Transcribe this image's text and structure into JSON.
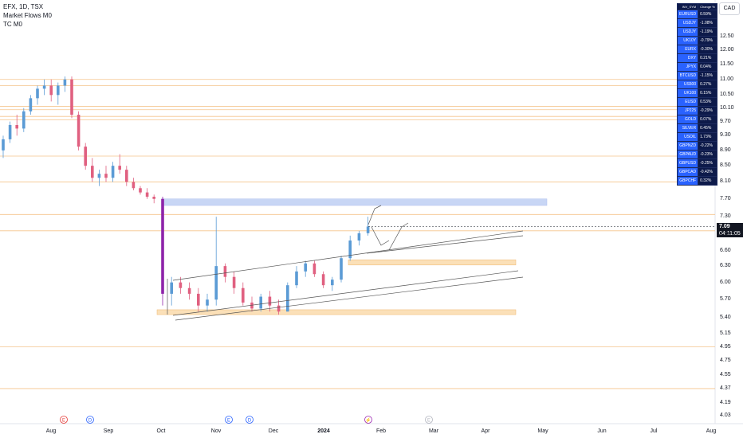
{
  "legend": {
    "symbol_line": "EFX, 1D, TSX",
    "indicator1": "Market Flows M0",
    "indicator2": "TC M0"
  },
  "currency": "CAD",
  "price_axis": [
    "12.50",
    "12.00",
    "11.50",
    "11.00",
    "10.50",
    "10.10",
    "9.70",
    "9.30",
    "8.90",
    "8.50",
    "8.10",
    "7.70",
    "7.30",
    "6.90",
    "6.60",
    "6.30",
    "6.00",
    "5.70",
    "5.40",
    "5.15",
    "4.95",
    "4.75",
    "4.55",
    "4.37",
    "4.19",
    "4.03"
  ],
  "time_axis": [
    "Aug",
    "Sep",
    "Oct",
    "Nov",
    "Dec",
    "2024",
    "Feb",
    "Mar",
    "Apr",
    "May",
    "Jun",
    "Jul",
    "Aug"
  ],
  "last_price": {
    "value": "7.09",
    "countdown": "04:11:05"
  },
  "watchlist": {
    "header": [
      "INV_SYM",
      "Change %"
    ],
    "rows": [
      {
        "sym": "EURUSD",
        "chg": "0.59%"
      },
      {
        "sym": "USDJY",
        "chg": "-1.08%"
      },
      {
        "sym": "USDJY",
        "chg": "-1.19%"
      },
      {
        "sym": "UK10Y",
        "chg": "-0.79%"
      },
      {
        "sym": "EURX",
        "chg": "-0.30%"
      },
      {
        "sym": "DXY",
        "chg": "0.21%"
      },
      {
        "sym": "JPYX",
        "chg": "0.04%"
      },
      {
        "sym": "BTCUSD",
        "chg": "-1.15%"
      },
      {
        "sym": "US500",
        "chg": "0.27%"
      },
      {
        "sym": "UK100",
        "chg": "0.15%"
      },
      {
        "sym": "EUSD",
        "chg": "0.53%"
      },
      {
        "sym": "JP225",
        "chg": "-0.29%"
      },
      {
        "sym": "GOLD",
        "chg": "0.07%"
      },
      {
        "sym": "SILVER",
        "chg": "0.45%"
      },
      {
        "sym": "USOIL",
        "chg": "1.73%"
      },
      {
        "sym": "GBPNZD",
        "chg": "-0.22%"
      },
      {
        "sym": "GBPAUD",
        "chg": "-0.23%"
      },
      {
        "sym": "GBPUSD",
        "chg": "-0.25%"
      },
      {
        "sym": "GBPCAD",
        "chg": "-0.42%"
      },
      {
        "sym": "GBPCHF",
        "chg": "0.32%"
      }
    ]
  },
  "event_markers": [
    "E",
    "D",
    "E",
    "D",
    "⚡",
    "E"
  ],
  "colors": {
    "up": "#5b9bd5",
    "down": "#e06080",
    "level_line": "#f5c48c",
    "zone_orange": "#fbe0b8",
    "zone_blue": "#c8d6f5",
    "impulse": "#8e24aa",
    "channel": "#555555"
  },
  "chart_data": {
    "type": "candlestick",
    "symbol": "EFX",
    "interval": "1D",
    "exchange": "TSX",
    "currency": "CAD",
    "y_scale": "log",
    "levels": [
      11.0,
      10.8,
      10.15,
      10.05,
      9.85,
      9.75,
      8.75,
      8.1,
      7.35,
      7.0,
      4.95,
      4.37
    ],
    "candles": [
      {
        "o": 8.9,
        "h": 9.3,
        "l": 8.7,
        "c": 9.2
      },
      {
        "o": 9.2,
        "h": 9.7,
        "l": 9.1,
        "c": 9.6
      },
      {
        "o": 9.6,
        "h": 9.9,
        "l": 9.3,
        "c": 9.5
      },
      {
        "o": 9.5,
        "h": 10.1,
        "l": 9.4,
        "c": 10.0
      },
      {
        "o": 10.0,
        "h": 10.5,
        "l": 9.9,
        "c": 10.4
      },
      {
        "o": 10.4,
        "h": 10.8,
        "l": 10.2,
        "c": 10.7
      },
      {
        "o": 10.7,
        "h": 11.0,
        "l": 10.5,
        "c": 10.8
      },
      {
        "o": 10.8,
        "h": 11.0,
        "l": 10.3,
        "c": 10.5
      },
      {
        "o": 10.5,
        "h": 10.9,
        "l": 10.2,
        "c": 10.8
      },
      {
        "o": 10.8,
        "h": 11.1,
        "l": 10.6,
        "c": 11.0
      },
      {
        "o": 11.0,
        "h": 11.1,
        "l": 9.8,
        "c": 9.9
      },
      {
        "o": 9.9,
        "h": 10.0,
        "l": 8.9,
        "c": 9.0
      },
      {
        "o": 9.0,
        "h": 9.1,
        "l": 8.4,
        "c": 8.5
      },
      {
        "o": 8.5,
        "h": 8.7,
        "l": 8.1,
        "c": 8.2
      },
      {
        "o": 8.2,
        "h": 8.4,
        "l": 8.0,
        "c": 8.3
      },
      {
        "o": 8.3,
        "h": 8.5,
        "l": 8.1,
        "c": 8.2
      },
      {
        "o": 8.2,
        "h": 8.6,
        "l": 8.1,
        "c": 8.5
      },
      {
        "o": 8.5,
        "h": 8.8,
        "l": 8.3,
        "c": 8.4
      },
      {
        "o": 8.4,
        "h": 8.5,
        "l": 8.0,
        "c": 8.1
      },
      {
        "o": 8.1,
        "h": 8.2,
        "l": 7.9,
        "c": 7.95
      },
      {
        "o": 7.95,
        "h": 8.0,
        "l": 7.8,
        "c": 7.85
      },
      {
        "o": 7.85,
        "h": 7.95,
        "l": 7.7,
        "c": 7.75
      },
      {
        "o": 7.75,
        "h": 7.8,
        "l": 7.6,
        "c": 7.7
      },
      {
        "o": 7.7,
        "h": 7.75,
        "l": 5.6,
        "c": 5.8
      },
      {
        "o": 5.8,
        "h": 6.1,
        "l": 5.6,
        "c": 6.0
      },
      {
        "o": 6.0,
        "h": 6.1,
        "l": 5.8,
        "c": 5.9
      },
      {
        "o": 5.9,
        "h": 6.0,
        "l": 5.7,
        "c": 5.8
      },
      {
        "o": 5.8,
        "h": 5.9,
        "l": 5.5,
        "c": 5.6
      },
      {
        "o": 5.6,
        "h": 5.8,
        "l": 5.5,
        "c": 5.7
      },
      {
        "o": 5.7,
        "h": 7.3,
        "l": 5.6,
        "c": 6.3
      },
      {
        "o": 6.3,
        "h": 6.35,
        "l": 6.0,
        "c": 6.1
      },
      {
        "o": 6.1,
        "h": 6.2,
        "l": 5.8,
        "c": 5.9
      },
      {
        "o": 5.9,
        "h": 6.0,
        "l": 5.6,
        "c": 5.65
      },
      {
        "o": 5.65,
        "h": 5.75,
        "l": 5.5,
        "c": 5.55
      },
      {
        "o": 5.55,
        "h": 5.8,
        "l": 5.5,
        "c": 5.75
      },
      {
        "o": 5.75,
        "h": 5.85,
        "l": 5.5,
        "c": 5.6
      },
      {
        "o": 5.6,
        "h": 5.7,
        "l": 5.45,
        "c": 5.5
      },
      {
        "o": 5.5,
        "h": 6.0,
        "l": 5.5,
        "c": 5.95
      },
      {
        "o": 5.95,
        "h": 6.3,
        "l": 5.9,
        "c": 6.2
      },
      {
        "o": 6.2,
        "h": 6.4,
        "l": 6.1,
        "c": 6.35
      },
      {
        "o": 6.35,
        "h": 6.4,
        "l": 6.1,
        "c": 6.15
      },
      {
        "o": 6.15,
        "h": 6.2,
        "l": 5.9,
        "c": 5.95
      },
      {
        "o": 5.95,
        "h": 6.1,
        "l": 5.85,
        "c": 6.05
      },
      {
        "o": 6.05,
        "h": 6.5,
        "l": 6.0,
        "c": 6.45
      },
      {
        "o": 6.45,
        "h": 6.9,
        "l": 6.4,
        "c": 6.8
      },
      {
        "o": 6.8,
        "h": 7.0,
        "l": 6.7,
        "c": 6.95
      },
      {
        "o": 6.95,
        "h": 7.3,
        "l": 6.9,
        "c": 7.09
      }
    ],
    "zones": [
      {
        "color": "blue",
        "from": 7.55,
        "to": 7.7
      },
      {
        "color": "orange",
        "from": 6.32,
        "to": 6.42
      },
      {
        "color": "orange",
        "from": 5.45,
        "to": 5.53
      }
    ]
  }
}
